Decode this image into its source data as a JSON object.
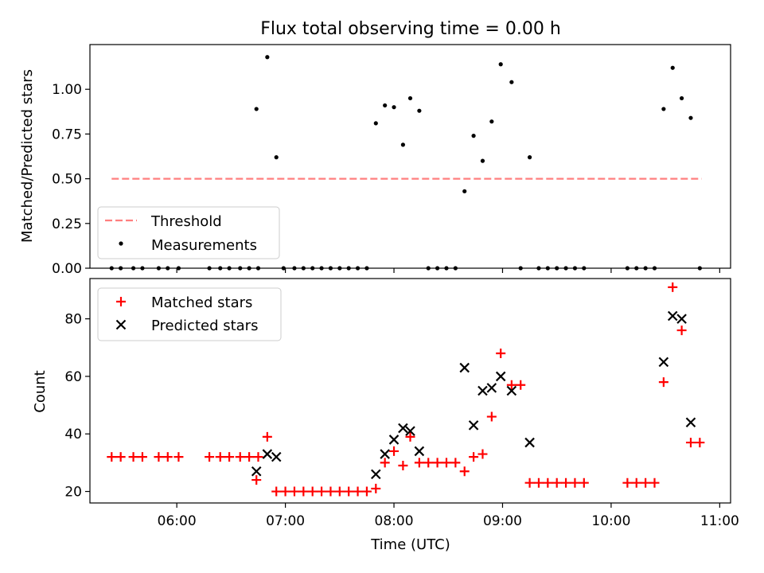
{
  "chart_data": [
    {
      "type": "scatter",
      "title": "Flux total observing time = 0.00 h",
      "ylabel": "Matched/Predicted stars",
      "xlabel": "",
      "ylim": [
        0,
        1.25
      ],
      "xlim": [
        "05:12",
        "11:06"
      ],
      "yticks": [
        0.0,
        0.25,
        0.5,
        0.75,
        1.0
      ],
      "ytick_labels": [
        "0.00",
        "0.25",
        "0.50",
        "0.75",
        "1.00"
      ],
      "grid": false,
      "legend": {
        "placement": "lower-left",
        "entries": [
          "Threshold",
          "Measurements"
        ]
      },
      "threshold": {
        "name": "Threshold",
        "value": 0.5,
        "x_start": "05:24",
        "x_end": "10:50",
        "color": "#ff7f7f"
      },
      "series": [
        {
          "name": "Measurements",
          "color": "#000000",
          "points": [
            [
              "05:24",
              0.0
            ],
            [
              "05:29",
              0.0
            ],
            [
              "05:36",
              0.0
            ],
            [
              "05:41",
              0.0
            ],
            [
              "05:50",
              0.0
            ],
            [
              "05:55",
              0.0
            ],
            [
              "06:01",
              0.0
            ],
            [
              "06:18",
              0.0
            ],
            [
              "06:24",
              0.0
            ],
            [
              "06:29",
              0.0
            ],
            [
              "06:35",
              0.0
            ],
            [
              "06:40",
              0.0
            ],
            [
              "06:45",
              0.0
            ],
            [
              "06:44",
              0.89
            ],
            [
              "06:50",
              1.18
            ],
            [
              "06:55",
              0.62
            ],
            [
              "06:59",
              0.0
            ],
            [
              "07:05",
              0.0
            ],
            [
              "07:10",
              0.0
            ],
            [
              "07:15",
              0.0
            ],
            [
              "07:20",
              0.0
            ],
            [
              "07:25",
              0.0
            ],
            [
              "07:30",
              0.0
            ],
            [
              "07:35",
              0.0
            ],
            [
              "07:40",
              0.0
            ],
            [
              "07:45",
              0.0
            ],
            [
              "07:50",
              0.81
            ],
            [
              "07:55",
              0.91
            ],
            [
              "07:60",
              0.9
            ],
            [
              "08:05",
              0.69
            ],
            [
              "08:09",
              0.95
            ],
            [
              "08:14",
              0.88
            ],
            [
              "08:19",
              0.0
            ],
            [
              "08:24",
              0.0
            ],
            [
              "08:29",
              0.0
            ],
            [
              "08:34",
              0.0
            ],
            [
              "08:39",
              0.43
            ],
            [
              "08:44",
              0.74
            ],
            [
              "08:49",
              0.6
            ],
            [
              "08:54",
              0.82
            ],
            [
              "08:59",
              1.14
            ],
            [
              "09:05",
              1.04
            ],
            [
              "09:10",
              0.0
            ],
            [
              "09:15",
              0.62
            ],
            [
              "09:20",
              0.0
            ],
            [
              "09:25",
              0.0
            ],
            [
              "09:30",
              0.0
            ],
            [
              "09:35",
              0.0
            ],
            [
              "09:40",
              0.0
            ],
            [
              "09:45",
              0.0
            ],
            [
              "10:09",
              0.0
            ],
            [
              "10:14",
              0.0
            ],
            [
              "10:19",
              0.0
            ],
            [
              "10:24",
              0.0
            ],
            [
              "10:29",
              0.89
            ],
            [
              "10:34",
              1.12
            ],
            [
              "10:39",
              0.95
            ],
            [
              "10:44",
              0.84
            ],
            [
              "10:49",
              0.0
            ]
          ]
        }
      ]
    },
    {
      "type": "scatter",
      "title": "",
      "ylabel": "Count",
      "xlabel": "Time (UTC)",
      "ylim": [
        16,
        94
      ],
      "xlim": [
        "05:12",
        "11:06"
      ],
      "yticks": [
        20,
        40,
        60,
        80
      ],
      "ytick_labels": [
        "20",
        "40",
        "60",
        "80"
      ],
      "xticks": [
        "06:00",
        "07:00",
        "08:00",
        "09:00",
        "10:00",
        "11:00"
      ],
      "xtick_labels": [
        "06:00",
        "07:00",
        "08:00",
        "09:00",
        "10:00",
        "11:00"
      ],
      "grid": false,
      "legend": {
        "placement": "upper-left",
        "entries": [
          "Matched stars",
          "Predicted stars"
        ]
      },
      "series": [
        {
          "name": "Matched stars",
          "marker": "+",
          "color": "#ff0000",
          "points": [
            [
              "05:24",
              32
            ],
            [
              "05:29",
              32
            ],
            [
              "05:36",
              32
            ],
            [
              "05:41",
              32
            ],
            [
              "05:50",
              32
            ],
            [
              "05:55",
              32
            ],
            [
              "06:01",
              32
            ],
            [
              "06:18",
              32
            ],
            [
              "06:24",
              32
            ],
            [
              "06:29",
              32
            ],
            [
              "06:35",
              32
            ],
            [
              "06:40",
              32
            ],
            [
              "06:45",
              32
            ],
            [
              "06:44",
              24
            ],
            [
              "06:50",
              39
            ],
            [
              "06:55",
              20
            ],
            [
              "07:00",
              20
            ],
            [
              "07:05",
              20
            ],
            [
              "07:10",
              20
            ],
            [
              "07:15",
              20
            ],
            [
              "07:20",
              20
            ],
            [
              "07:25",
              20
            ],
            [
              "07:30",
              20
            ],
            [
              "07:35",
              20
            ],
            [
              "07:40",
              20
            ],
            [
              "07:45",
              20
            ],
            [
              "07:50",
              21
            ],
            [
              "07:55",
              30
            ],
            [
              "08:00",
              34
            ],
            [
              "08:05",
              29
            ],
            [
              "08:09",
              39
            ],
            [
              "08:14",
              30
            ],
            [
              "08:19",
              30
            ],
            [
              "08:24",
              30
            ],
            [
              "08:29",
              30
            ],
            [
              "08:34",
              30
            ],
            [
              "08:39",
              27
            ],
            [
              "08:44",
              32
            ],
            [
              "08:49",
              33
            ],
            [
              "08:54",
              46
            ],
            [
              "08:59",
              68
            ],
            [
              "09:05",
              57
            ],
            [
              "09:10",
              57
            ],
            [
              "09:15",
              23
            ],
            [
              "09:20",
              23
            ],
            [
              "09:25",
              23
            ],
            [
              "09:30",
              23
            ],
            [
              "09:35",
              23
            ],
            [
              "09:40",
              23
            ],
            [
              "09:45",
              23
            ],
            [
              "10:09",
              23
            ],
            [
              "10:14",
              23
            ],
            [
              "10:19",
              23
            ],
            [
              "10:24",
              23
            ],
            [
              "10:29",
              58
            ],
            [
              "10:34",
              91
            ],
            [
              "10:39",
              76
            ],
            [
              "10:44",
              37
            ],
            [
              "10:49",
              37
            ]
          ]
        },
        {
          "name": "Predicted stars",
          "marker": "x",
          "color": "#000000",
          "points": [
            [
              "06:44",
              27
            ],
            [
              "06:50",
              33
            ],
            [
              "06:55",
              32
            ],
            [
              "07:50",
              26
            ],
            [
              "07:55",
              33
            ],
            [
              "08:00",
              38
            ],
            [
              "08:05",
              42
            ],
            [
              "08:09",
              41
            ],
            [
              "08:14",
              34
            ],
            [
              "08:39",
              63
            ],
            [
              "08:44",
              43
            ],
            [
              "08:49",
              55
            ],
            [
              "08:54",
              56
            ],
            [
              "08:59",
              60
            ],
            [
              "09:05",
              55
            ],
            [
              "09:15",
              37
            ],
            [
              "10:29",
              65
            ],
            [
              "10:34",
              81
            ],
            [
              "10:39",
              80
            ],
            [
              "10:44",
              44
            ]
          ]
        }
      ]
    }
  ]
}
